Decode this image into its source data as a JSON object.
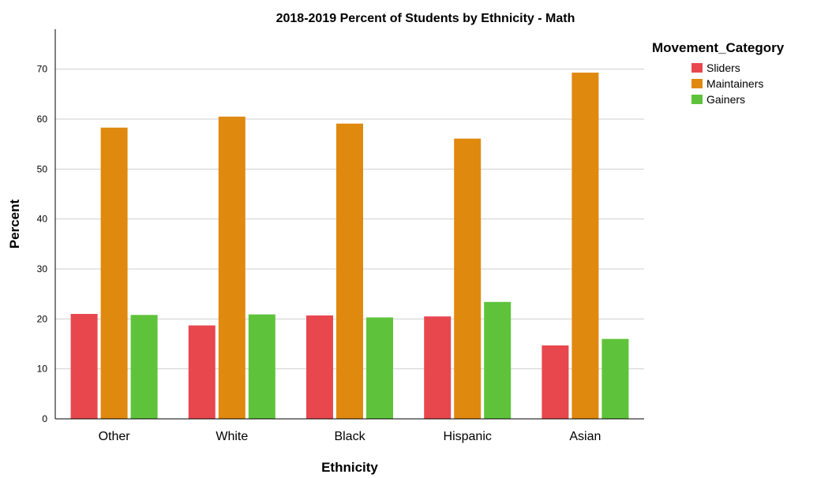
{
  "chart_data": {
    "type": "bar",
    "title": "2018-2019 Percent of Students by Ethnicity - Math",
    "xlabel": "Ethnicity",
    "ylabel": "Percent",
    "categories": [
      "Other",
      "White",
      "Black",
      "Hispanic",
      "Asian"
    ],
    "series": [
      {
        "name": "Sliders",
        "color": "#e8474e",
        "values": [
          21.0,
          18.7,
          20.7,
          20.5,
          14.7
        ]
      },
      {
        "name": "Maintainers",
        "color": "#e0890f",
        "values": [
          58.3,
          60.5,
          59.1,
          56.1,
          69.3
        ]
      },
      {
        "name": "Gainers",
        "color": "#5ec33a",
        "values": [
          20.8,
          20.9,
          20.3,
          23.4,
          16.0
        ]
      }
    ],
    "ylim": [
      0,
      78
    ],
    "yticks": [
      0,
      10,
      20,
      30,
      40,
      50,
      60,
      70
    ],
    "grid": true,
    "legend_title": "Movement_Category",
    "legend_position": "top-right"
  }
}
